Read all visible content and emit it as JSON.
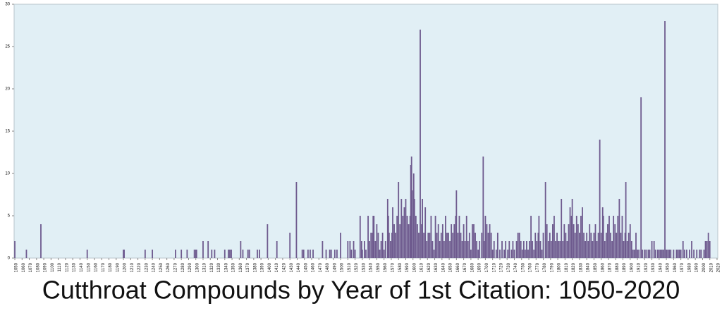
{
  "chart_data": {
    "type": "bar",
    "title": "Cutthroat Compounds by Year of 1st Citation: 1050-2020",
    "color": "#6e5a8e",
    "background": "#e1eff5",
    "xlim": [
      1049,
      2021
    ],
    "ylim": [
      0,
      30
    ],
    "yticks": [
      0,
      5,
      10,
      15,
      20,
      25,
      30
    ],
    "xticks": [
      1050,
      1060,
      1070,
      1080,
      1090,
      1100,
      1110,
      1120,
      1130,
      1140,
      1150,
      1160,
      1170,
      1180,
      1190,
      1200,
      1210,
      1220,
      1230,
      1240,
      1250,
      1260,
      1270,
      1280,
      1290,
      1300,
      1310,
      1320,
      1330,
      1340,
      1350,
      1360,
      1370,
      1380,
      1390,
      1400,
      1410,
      1420,
      1430,
      1440,
      1450,
      1460,
      1470,
      1480,
      1490,
      1500,
      1510,
      1520,
      1530,
      1540,
      1550,
      1560,
      1570,
      1580,
      1590,
      1600,
      1610,
      1620,
      1630,
      1640,
      1650,
      1660,
      1670,
      1680,
      1690,
      1700,
      1710,
      1720,
      1730,
      1740,
      1750,
      1760,
      1770,
      1780,
      1790,
      1800,
      1810,
      1820,
      1830,
      1840,
      1850,
      1860,
      1870,
      1880,
      1890,
      1900,
      1910,
      1920,
      1930,
      1940,
      1950,
      1960,
      1970,
      1980,
      1990,
      2000,
      2010,
      2020
    ],
    "x": [
      1050,
      1066,
      1086,
      1150,
      1200,
      1201,
      1230,
      1240,
      1272,
      1280,
      1288,
      1298,
      1300,
      1301,
      1310,
      1317,
      1322,
      1326,
      1340,
      1345,
      1347,
      1349,
      1362,
      1365,
      1372,
      1374,
      1385,
      1388,
      1399,
      1412,
      1430,
      1439,
      1447,
      1449,
      1455,
      1458,
      1462,
      1475,
      1480,
      1485,
      1487,
      1492,
      1495,
      1500,
      1510,
      1513,
      1515,
      1518,
      1520,
      1527,
      1529,
      1530,
      1533,
      1535,
      1538,
      1540,
      1542,
      1544,
      1545,
      1546,
      1548,
      1550,
      1552,
      1554,
      1556,
      1558,
      1560,
      1562,
      1565,
      1566,
      1567,
      1569,
      1571,
      1572,
      1574,
      1576,
      1578,
      1580,
      1582,
      1584,
      1586,
      1588,
      1590,
      1592,
      1594,
      1596,
      1597,
      1598,
      1599,
      1601,
      1602,
      1604,
      1606,
      1608,
      1610,
      1612,
      1613,
      1615,
      1617,
      1619,
      1621,
      1623,
      1625,
      1627,
      1629,
      1631,
      1633,
      1635,
      1637,
      1639,
      1641,
      1643,
      1645,
      1647,
      1649,
      1651,
      1653,
      1655,
      1657,
      1659,
      1660,
      1662,
      1664,
      1666,
      1668,
      1670,
      1672,
      1674,
      1676,
      1678,
      1680,
      1682,
      1684,
      1686,
      1688,
      1690,
      1692,
      1695,
      1697,
      1699,
      1700,
      1702,
      1704,
      1706,
      1708,
      1710,
      1712,
      1715,
      1717,
      1720,
      1723,
      1726,
      1728,
      1731,
      1733,
      1736,
      1738,
      1740,
      1743,
      1745,
      1747,
      1749,
      1751,
      1753,
      1755,
      1757,
      1759,
      1761,
      1763,
      1765,
      1767,
      1769,
      1771,
      1773,
      1774,
      1776,
      1778,
      1780,
      1783,
      1785,
      1787,
      1789,
      1791,
      1793,
      1795,
      1797,
      1799,
      1801,
      1803,
      1805,
      1807,
      1809,
      1811,
      1813,
      1815,
      1817,
      1819,
      1820,
      1822,
      1824,
      1826,
      1828,
      1830,
      1832,
      1834,
      1836,
      1838,
      1840,
      1842,
      1844,
      1846,
      1848,
      1850,
      1852,
      1854,
      1856,
      1858,
      1860,
      1862,
      1863,
      1865,
      1867,
      1869,
      1871,
      1873,
      1875,
      1877,
      1879,
      1881,
      1883,
      1885,
      1887,
      1889,
      1891,
      1893,
      1894,
      1896,
      1898,
      1900,
      1902,
      1904,
      1906,
      1908,
      1910,
      1912,
      1915,
      1917,
      1920,
      1922,
      1925,
      1927,
      1930,
      1933,
      1935,
      1938,
      1940,
      1942,
      1944,
      1946,
      1948,
      1950,
      1952,
      1954,
      1956,
      1960,
      1964,
      1966,
      1968,
      1970,
      1973,
      1975,
      1978,
      1982,
      1985,
      1988,
      1992,
      1996,
      1998,
      2002,
      2004,
      2006,
      2008,
      2010
    ],
    "values": [
      2,
      1,
      4,
      1,
      1,
      1,
      1,
      1,
      1,
      1,
      1,
      1,
      1,
      1,
      2,
      2,
      1,
      1,
      1,
      1,
      1,
      1,
      2,
      1,
      1,
      1,
      1,
      1,
      4,
      2,
      3,
      9,
      1,
      1,
      1,
      1,
      1,
      2,
      1,
      1,
      1,
      1,
      1,
      3,
      2,
      2,
      1,
      2,
      1,
      5,
      2,
      1,
      2,
      1,
      5,
      2,
      3,
      3,
      5,
      5,
      2,
      4,
      3,
      1,
      2,
      3,
      1,
      2,
      7,
      5,
      3,
      2,
      3,
      6,
      4,
      3,
      5,
      9,
      4,
      7,
      5,
      6,
      7,
      5,
      4,
      5,
      11,
      12,
      8,
      10,
      7,
      5,
      4,
      3,
      27,
      4,
      7,
      3,
      6,
      2,
      3,
      3,
      5,
      2,
      1,
      5,
      3,
      4,
      2,
      3,
      4,
      2,
      5,
      3,
      3,
      2,
      4,
      3,
      4,
      5,
      8,
      3,
      5,
      3,
      2,
      4,
      2,
      5,
      2,
      3,
      1,
      4,
      4,
      3,
      2,
      1,
      2,
      3,
      12,
      2,
      5,
      4,
      3,
      4,
      3,
      1,
      2,
      1,
      3,
      1,
      2,
      1,
      2,
      1,
      2,
      1,
      2,
      1,
      2,
      3,
      3,
      2,
      1,
      2,
      1,
      2,
      1,
      2,
      5,
      2,
      1,
      3,
      2,
      3,
      5,
      2,
      1,
      3,
      9,
      4,
      2,
      3,
      2,
      4,
      5,
      2,
      3,
      2,
      2,
      7,
      2,
      4,
      3,
      2,
      4,
      6,
      5,
      7,
      4,
      3,
      5,
      4,
      3,
      5,
      6,
      3,
      2,
      3,
      2,
      4,
      3,
      2,
      3,
      4,
      2,
      3,
      14,
      3,
      6,
      5,
      2,
      3,
      4,
      5,
      3,
      2,
      5,
      4,
      3,
      5,
      7,
      3,
      5,
      2,
      3,
      9,
      2,
      3,
      4,
      2,
      1,
      1,
      3,
      1,
      1,
      19,
      1,
      1,
      1,
      1,
      1,
      2,
      2,
      1,
      1,
      1,
      1,
      1,
      1,
      28,
      1,
      1,
      1,
      1,
      1,
      1,
      1,
      1,
      1,
      2,
      1,
      1,
      1,
      2,
      1,
      1,
      1,
      1,
      1,
      2,
      2,
      3,
      2
    ]
  }
}
